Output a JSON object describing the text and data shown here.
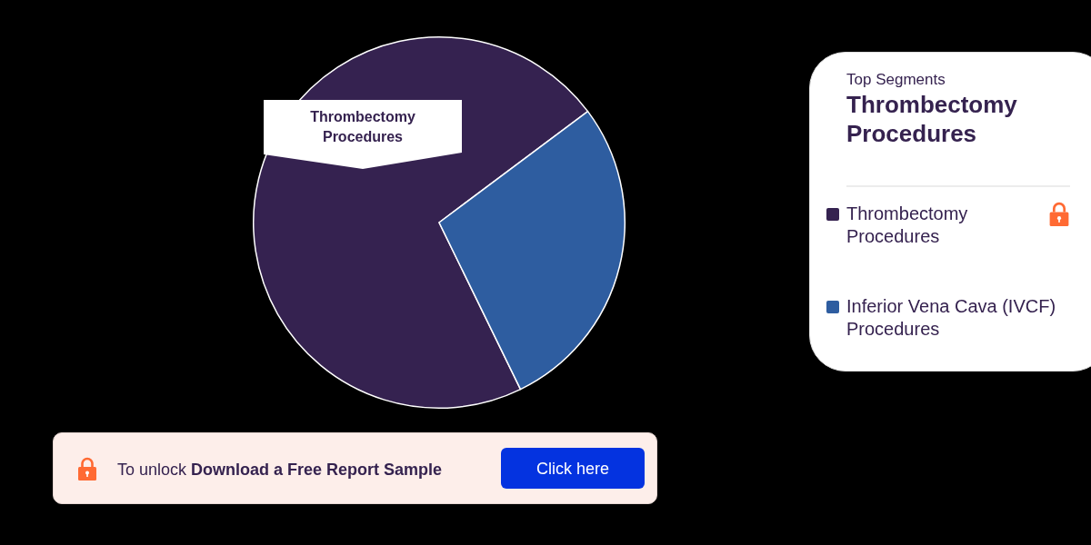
{
  "chart_data": {
    "type": "pie",
    "categories": [
      "Thrombectomy Procedures",
      "Inferior Vena Cava (IVCF) Procedures"
    ],
    "values": [
      72,
      28
    ],
    "colors": [
      "#352250",
      "#2e5da0"
    ],
    "legend": "right",
    "legend_title": "Top Segments",
    "annotations": [
      "Thrombectomy Procedures",
      "Thrombectomy Procedures",
      "To unlock",
      "Download a Free Report Sample",
      "Click here"
    ]
  }
}
